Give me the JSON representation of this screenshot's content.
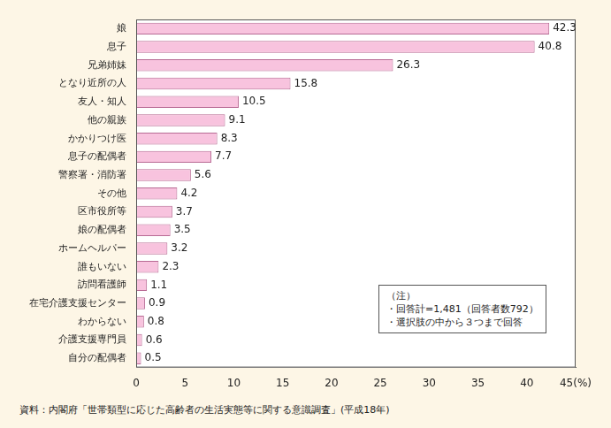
{
  "chart_data": {
    "type": "bar",
    "orientation": "horizontal",
    "categories": [
      "娘",
      "息子",
      "兄弟姉妹",
      "となり近所の人",
      "友人・知人",
      "他の親族",
      "かかりつけ医",
      "息子の配偶者",
      "警察署・消防署",
      "その他",
      "区市役所等",
      "娘の配偶者",
      "ホームヘルパー",
      "誰もいない",
      "訪問看護師",
      "在宅介護支援センター",
      "わからない",
      "介護支援専門員",
      "自分の配偶者"
    ],
    "values": [
      42.3,
      40.8,
      26.3,
      15.8,
      10.5,
      9.1,
      8.3,
      7.7,
      5.6,
      4.2,
      3.7,
      3.5,
      3.2,
      2.3,
      1.1,
      0.9,
      0.8,
      0.6,
      0.5
    ],
    "color": "#f8c3de",
    "xlim": [
      0,
      45
    ],
    "xticks": [
      0,
      5,
      10,
      15,
      20,
      25,
      30,
      35,
      40,
      {
        "value": 45,
        "label": "45(%)"
      }
    ],
    "grid": false,
    "data_labels": true,
    "notes": [
      "（注）",
      "・回答計=1,481（回答者数792）",
      "・選択肢の中から３つまで回答"
    ],
    "source": "資料：内閣府「世帯類型に応じた高齢者の生活実態等に関する意識調査」(平成18年)"
  }
}
